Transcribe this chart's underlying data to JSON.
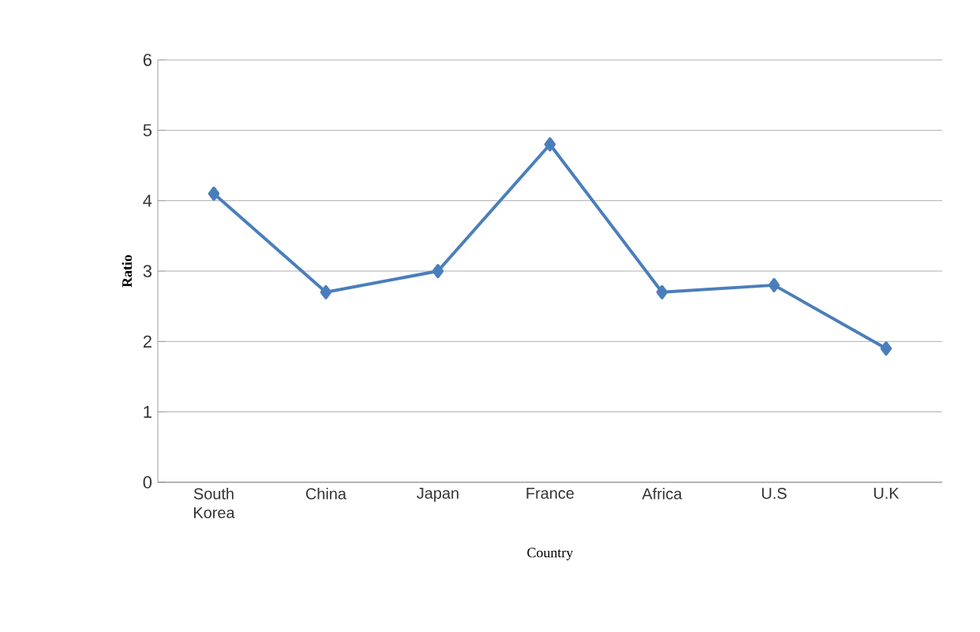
{
  "chart_data": {
    "type": "line",
    "xlabel": "Country",
    "ylabel": "Ratio",
    "categories": [
      "South Korea",
      "China",
      "Japan",
      "France",
      "Africa",
      "U.S",
      "U.K"
    ],
    "values": [
      4.1,
      2.7,
      3.0,
      4.8,
      2.7,
      2.8,
      1.9
    ],
    "color": "#4a7ebb",
    "marker": "diamond",
    "line_style": "solid",
    "ylim": [
      0,
      6
    ],
    "yticks": [
      0,
      1,
      2,
      3,
      4,
      5,
      6
    ],
    "grid": "y"
  }
}
